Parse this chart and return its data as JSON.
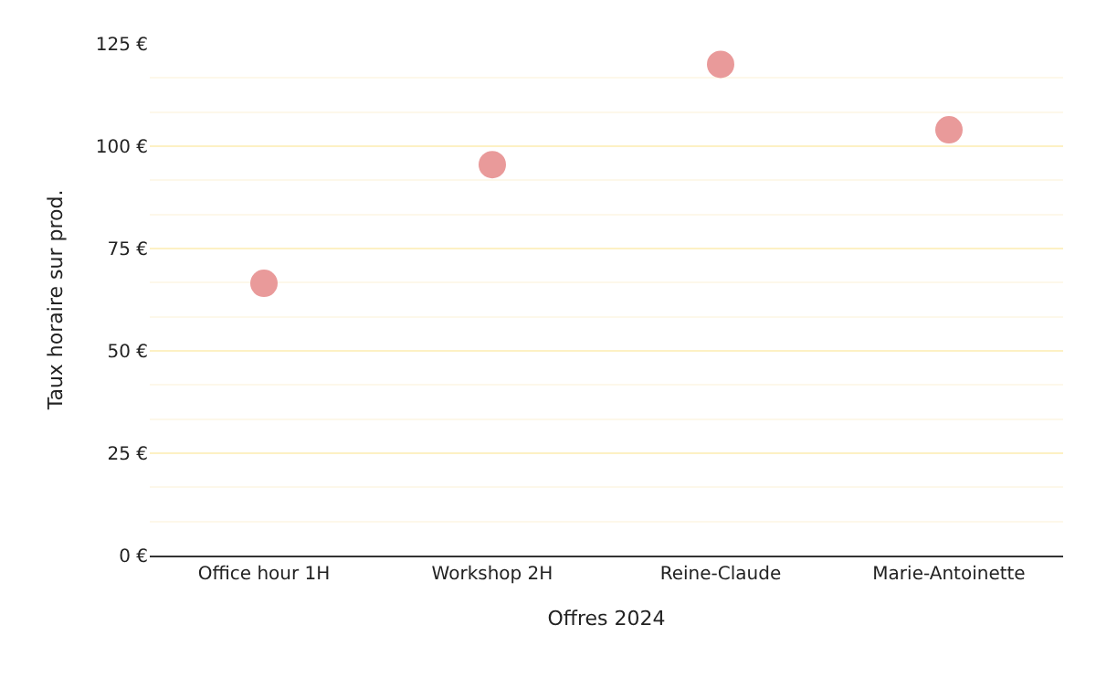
{
  "chart_data": {
    "type": "scatter",
    "xlabel": "Offres 2024",
    "ylabel": "Taux horaire sur prod.",
    "categories": [
      "Office hour 1H",
      "Workshop 2H",
      "Reine-Claude",
      "Marie-Antoinette"
    ],
    "series": [
      {
        "color": "#e99a9a",
        "values": [
          66.5,
          95.5,
          120,
          104
        ]
      }
    ],
    "marker": "circle",
    "grid": "y",
    "ylim": [
      0,
      125
    ],
    "yticks": [
      {
        "value": 0,
        "label": "0 €"
      },
      {
        "value": 25,
        "label": "25 €"
      },
      {
        "value": 50,
        "label": "50 €"
      },
      {
        "value": 75,
        "label": "75 €"
      },
      {
        "value": 100,
        "label": "100 €"
      },
      {
        "value": 125,
        "label": "125 €"
      }
    ]
  }
}
